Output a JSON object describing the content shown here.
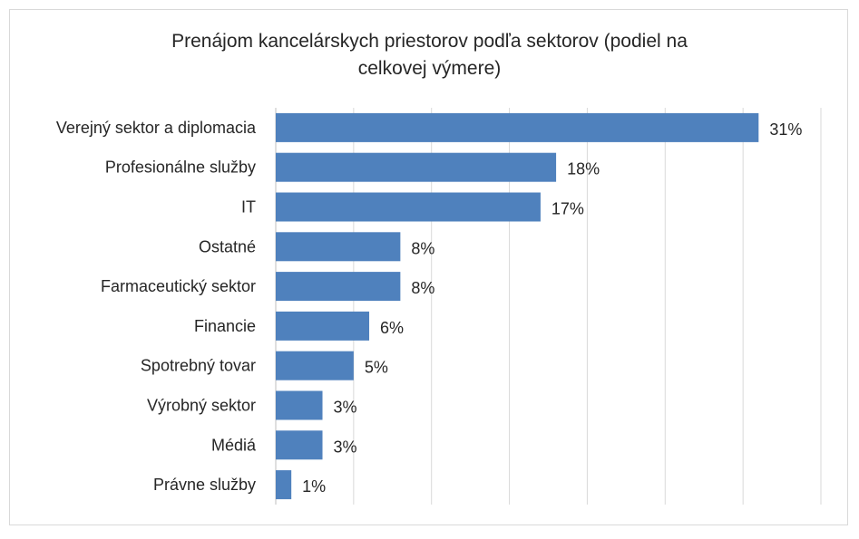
{
  "chart_data": {
    "type": "bar",
    "orientation": "horizontal",
    "title_line1": "Prenájom kancelárskych priestorov podľa sektorov (podiel na",
    "title_line2": "celkovej výmere)",
    "categories": [
      "Verejný sektor a diplomacia",
      "Profesionálne služby",
      "IT",
      "Ostatné",
      "Farmaceutický sektor",
      "Financie",
      "Spotrebný tovar",
      "Výrobný sektor",
      "Médiá",
      "Právne služby"
    ],
    "values": [
      31,
      18,
      17,
      8,
      8,
      6,
      5,
      3,
      3,
      1
    ],
    "value_labels": [
      "31%",
      "18%",
      "17%",
      "8%",
      "8%",
      "6%",
      "5%",
      "3%",
      "3%",
      "1%"
    ],
    "xlim": [
      0,
      35
    ],
    "grid": "vertical",
    "colors": {
      "bar": "#4f81bd",
      "grid": "#d9d9d9",
      "text": "#262626"
    }
  }
}
